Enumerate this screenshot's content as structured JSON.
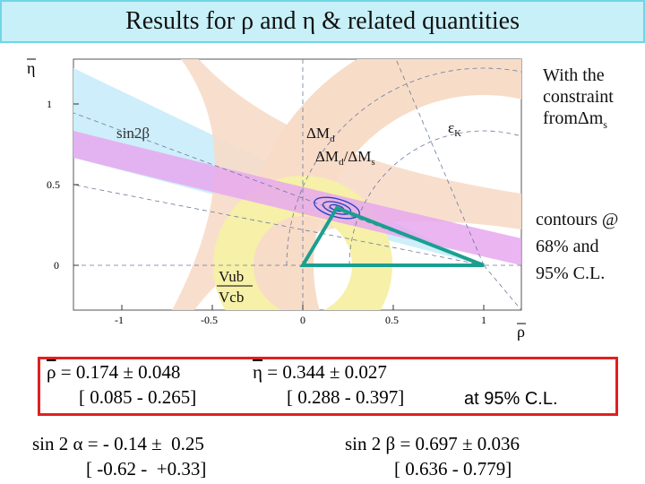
{
  "header": {
    "title": "Results for ρ  and  η  & related quantities"
  },
  "plot": {
    "axis_y_label": "η",
    "axis_x_label": "ρ",
    "y_ticks": [
      "1",
      "0.5",
      "0"
    ],
    "x_ticks": [
      "-1",
      "-0.5",
      "0",
      "0.5",
      "1"
    ],
    "labels": {
      "sin2b": "sin2β",
      "dmd": "ΔM",
      "dmd_sub": "d",
      "ratio": "ΔM",
      "ratio_sub1": "d",
      "ratio_mid": "/ΔM",
      "ratio_sub2": "s",
      "epsk": "ε",
      "epsk_sub": "K",
      "vub": "Vub",
      "vcb": "Vcb"
    },
    "colors": {
      "sin2b_band": "#cdeefa",
      "dm_band": "#f7dcc8",
      "ratio_band": "#e6a8ee",
      "eps_band": "#f7dcc8",
      "vub_band": "#f6f0a8",
      "triangle": "#1a9f8f",
      "contour": "#2040c0"
    }
  },
  "notes": {
    "constraint_lines": [
      "With the",
      "constraint",
      "fromΔm"
    ],
    "constraint_sub": "s",
    "contours_lines": [
      "contours @",
      "68% and",
      "95% C.L."
    ]
  },
  "results": {
    "rho_symbol": "ρ",
    "rho_value": " = 0.174 ± 0.048",
    "rho_range": "[ 0.085 - 0.265]",
    "eta_symbol": "η",
    "eta_value": " = 0.344 ± 0.027",
    "eta_range": "[ 0.288 - 0.397]",
    "cl_text": "at 95% C.L.",
    "sin2a_value": "sin 2 α = - 0.14 ±  0.25",
    "sin2a_range": "[ -0.62 -  +0.33]",
    "sin2b_value": "sin 2 β = 0.697 ± 0.036",
    "sin2b_range": "[ 0.636 - 0.779]"
  }
}
